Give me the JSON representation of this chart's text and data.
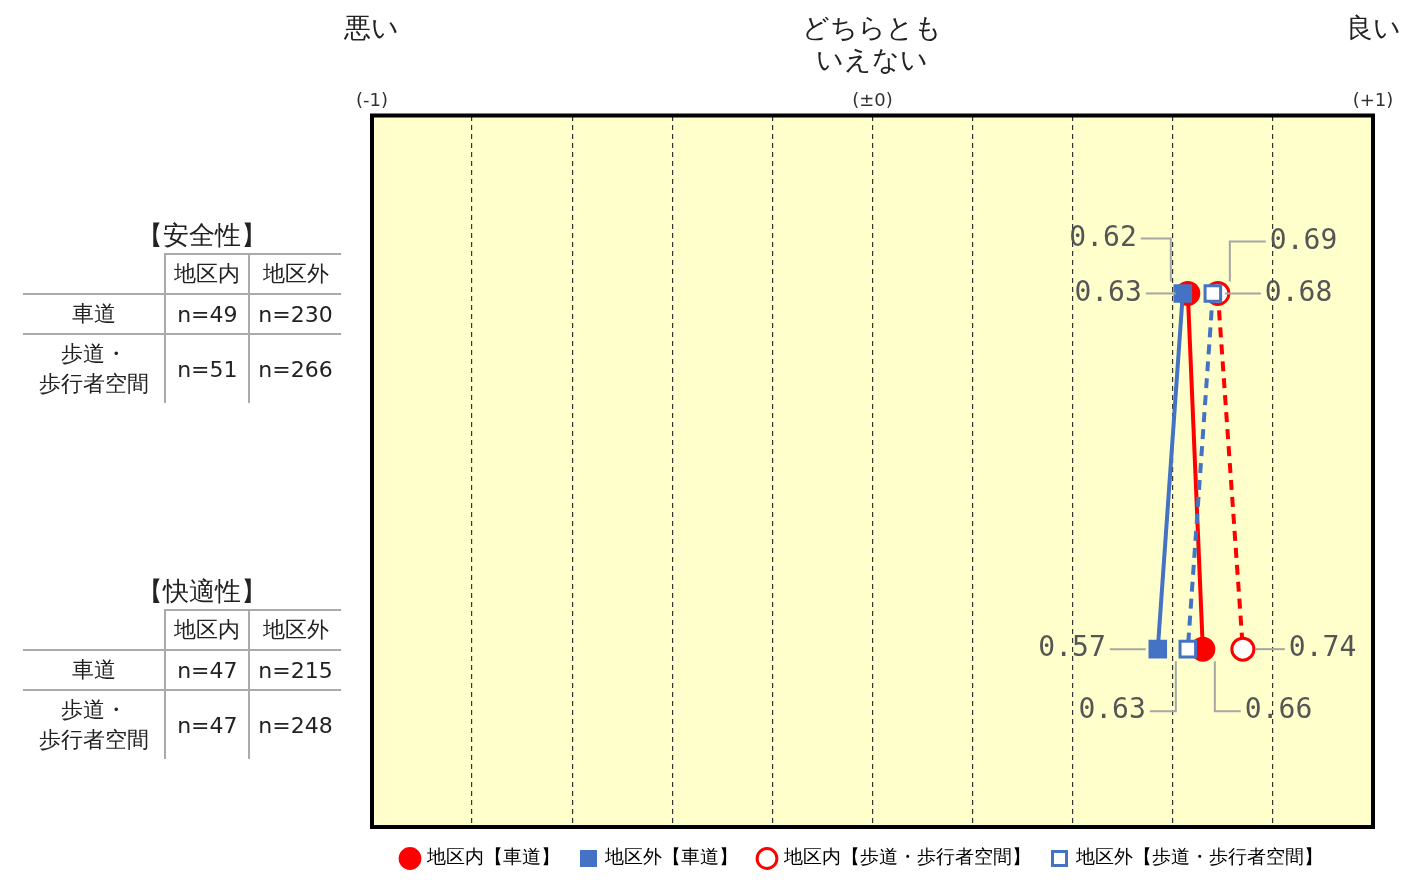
{
  "chart_data": {
    "type": "line",
    "orientation": "horizontal",
    "categories": [
      "【安全性】",
      "【快適性】"
    ],
    "series": [
      {
        "name": "地区内【車道】",
        "color": "#ff0000",
        "values": [
          0.63,
          0.66
        ],
        "marker": "circle",
        "line_style": "solid"
      },
      {
        "name": "地区外【車道】",
        "color": "#4472c4",
        "values": [
          0.62,
          0.57
        ],
        "marker": "square",
        "line_style": "solid"
      },
      {
        "name": "地区内【歩道・歩行者空間】",
        "color": "#ff0000",
        "values": [
          0.69,
          0.74
        ],
        "marker": "circle",
        "line_style": "dashed"
      },
      {
        "name": "地区外【歩道・歩行者空間】",
        "color": "#4472c4",
        "values": [
          0.68,
          0.63
        ],
        "marker": "square",
        "line_style": "dashed"
      }
    ],
    "xlim": [
      -1,
      1
    ],
    "xticks": [
      {
        "value": -1,
        "label": "(-1)"
      },
      {
        "value": -0.8,
        "label": null
      },
      {
        "value": -0.6,
        "label": null
      },
      {
        "value": -0.4,
        "label": null
      },
      {
        "value": -0.2,
        "label": null
      },
      {
        "value": 0,
        "label": "(±0)"
      },
      {
        "value": 0.2,
        "label": null
      },
      {
        "value": 0.4,
        "label": null
      },
      {
        "value": 0.6,
        "label": null
      },
      {
        "value": 0.8,
        "label": null
      },
      {
        "value": 1,
        "label": "(+1)"
      }
    ],
    "grid": "x",
    "legend": "bottom",
    "data_labels": true,
    "annotations": [
      "地区内",
      "地区外",
      "車道",
      "n=49",
      "n=230",
      "歩道・歩行者空間",
      "n=51",
      "n=266",
      "地区内",
      "地区外",
      "車道",
      "n=47",
      "n=215",
      "歩道・歩行者空間",
      "n=47",
      "n=248",
      "悪い",
      "どちらともいえない",
      "良い"
    ]
  }
}
